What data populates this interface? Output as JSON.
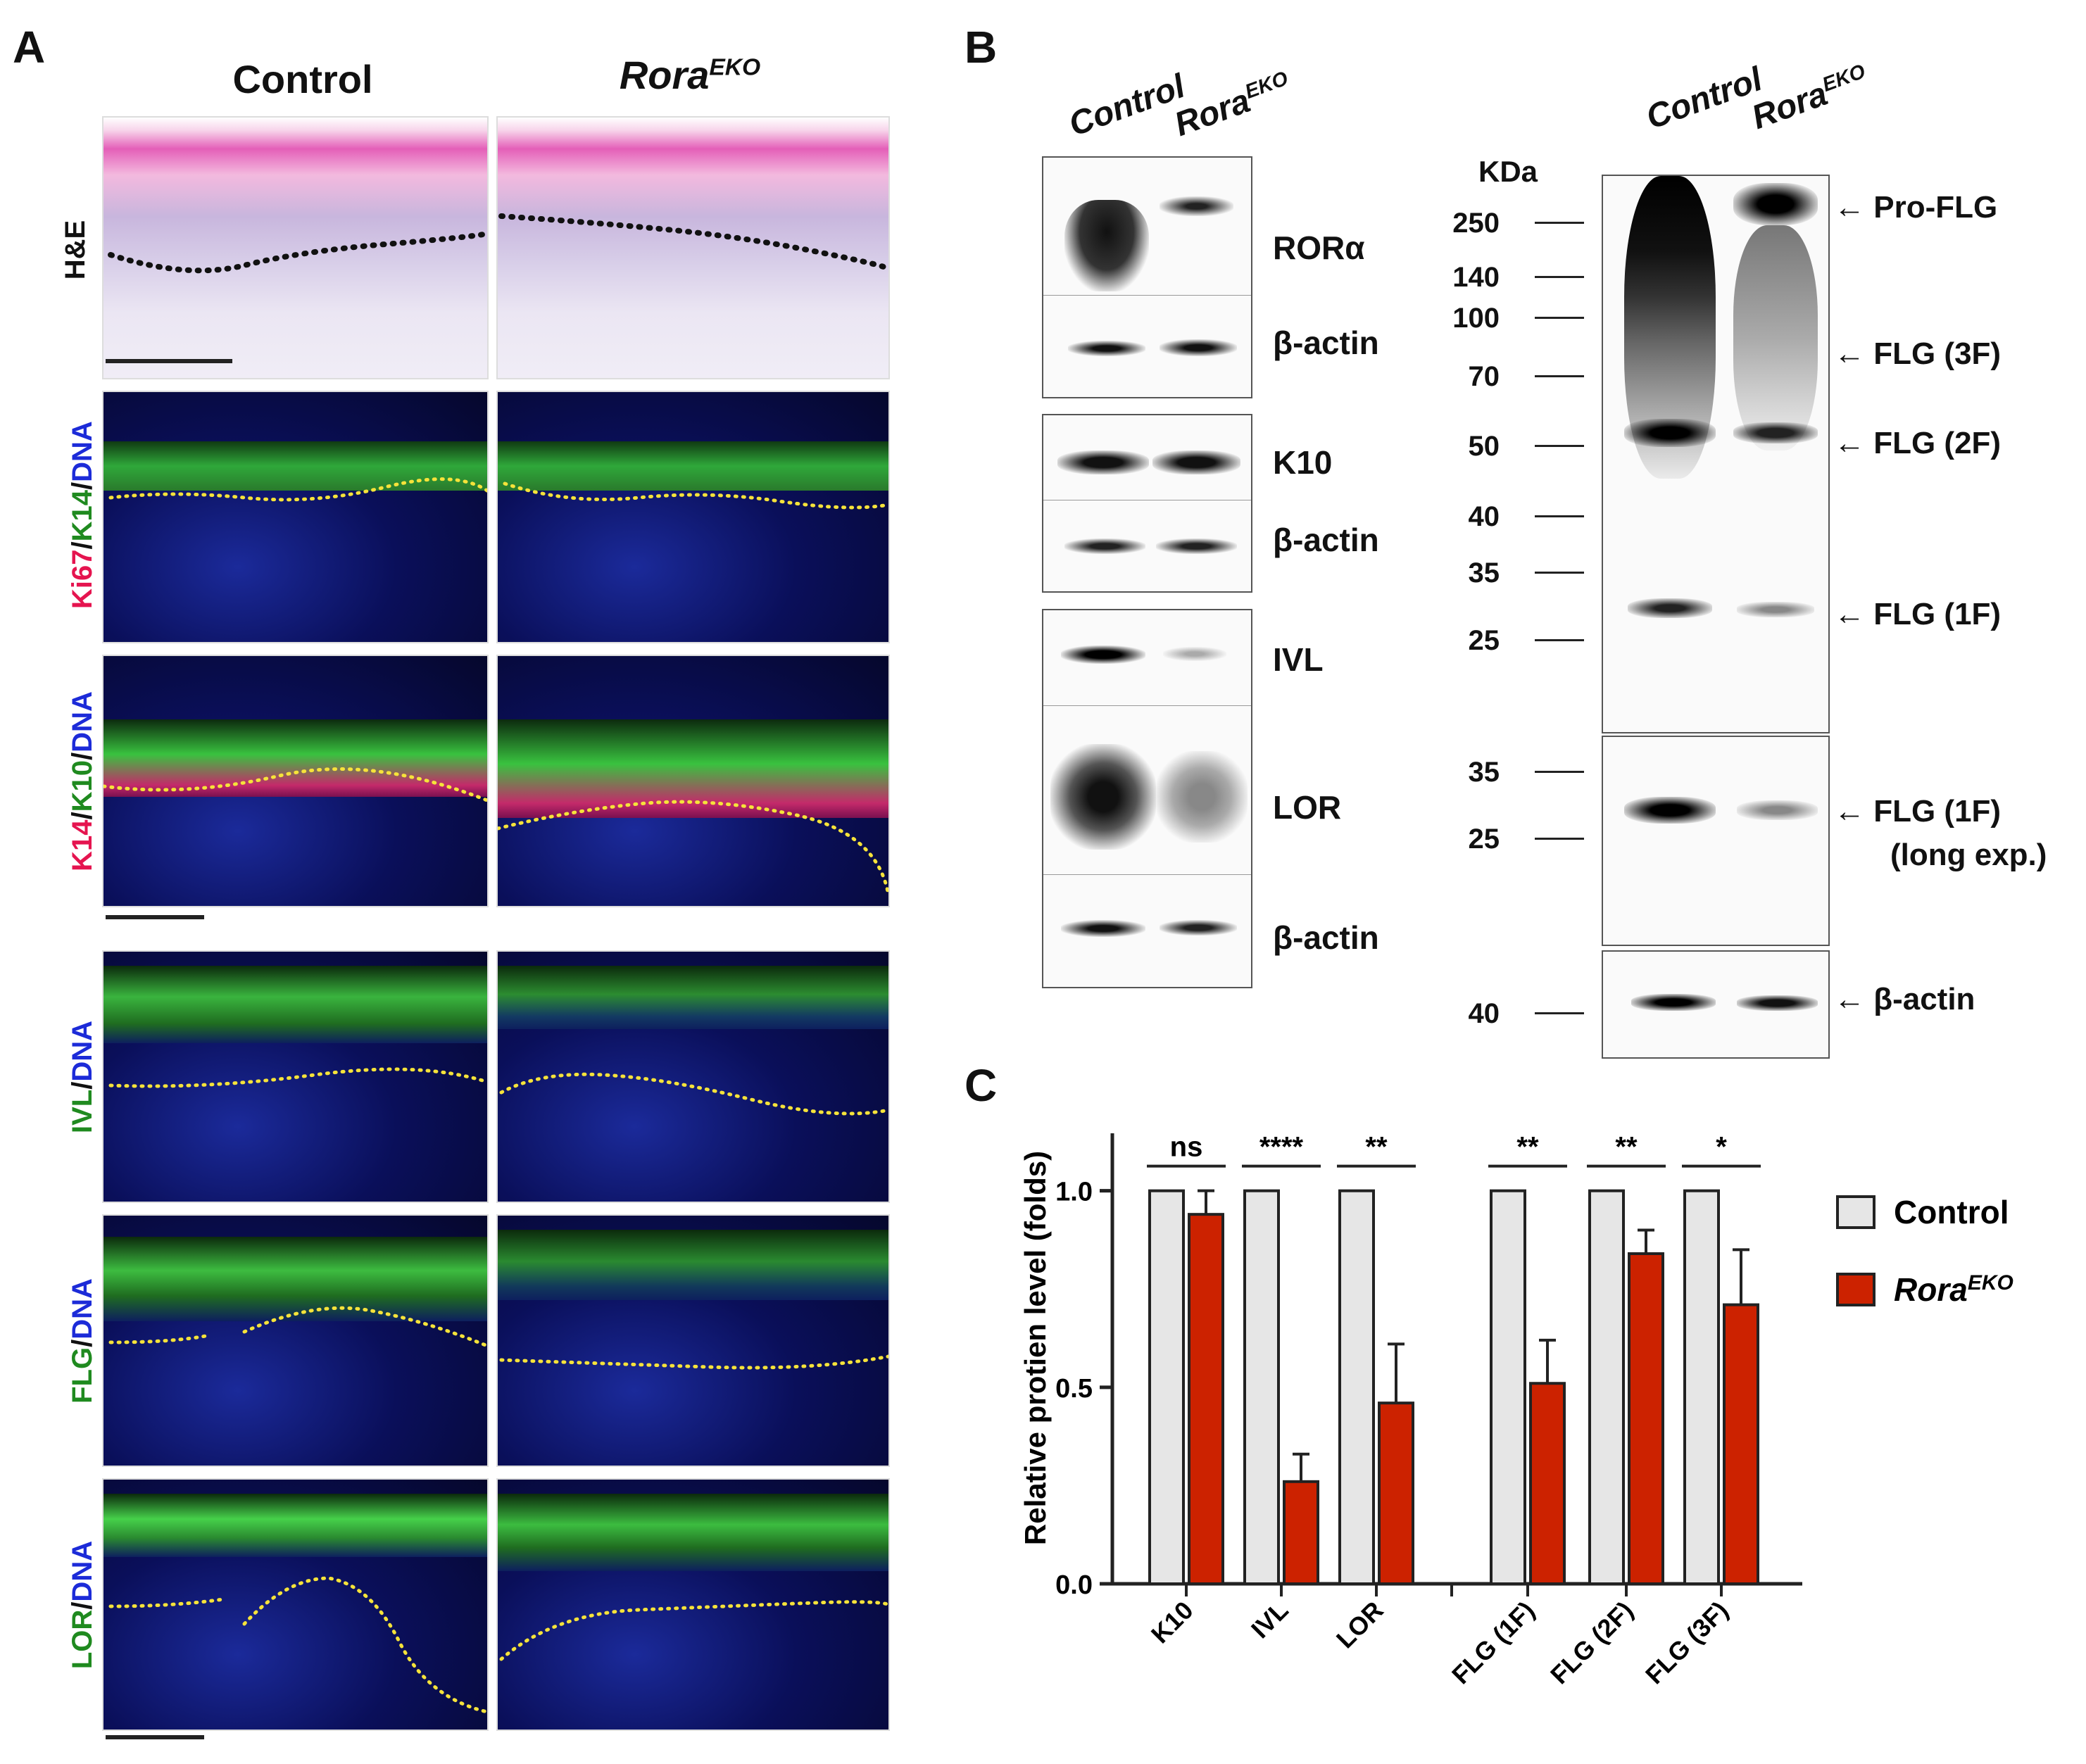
{
  "panels": {
    "a": "A",
    "b": "B",
    "c": "C"
  },
  "panel_a": {
    "col_control": "Control",
    "col_rora_main": "Rora",
    "col_rora_sup": "EKO",
    "rows": [
      {
        "label": "H&E"
      },
      {
        "label_parts": [
          "Ki67",
          "/",
          "K14",
          "/",
          "DNA"
        ]
      },
      {
        "label_parts": [
          "K14",
          "/",
          "K10",
          "/",
          "DNA"
        ]
      },
      {
        "label_parts": [
          "IVL",
          "/",
          "DNA"
        ]
      },
      {
        "label_parts": [
          "FLG",
          "/",
          "DNA"
        ]
      },
      {
        "label_parts": [
          "LOR",
          "/",
          "DNA"
        ]
      }
    ]
  },
  "panel_b_left": {
    "lane_control": "Control",
    "lane_rora_main": "Rora",
    "lane_rora_sup": "EKO",
    "labels": [
      "RORα",
      "β-actin",
      "K10",
      "β-actin",
      "IVL",
      "LOR",
      "β-actin"
    ]
  },
  "panel_b_right": {
    "kda_header": "KDa",
    "lane_control": "Control",
    "lane_rora_main": "Rora",
    "lane_rora_sup": "EKO",
    "markers_top": [
      "250",
      "140",
      "100",
      "70",
      "50",
      "40",
      "35",
      "25"
    ],
    "markers_mid": [
      "35",
      "25"
    ],
    "markers_bottom": [
      "40"
    ],
    "arrows": [
      "← Pro-FLG",
      "← FLG (3F)",
      "← FLG (2F)",
      "← FLG (1F)",
      "← FLG (1F)",
      "(long exp.)",
      "← β-actin"
    ]
  },
  "chart_data": {
    "type": "bar",
    "ylabel": "Relative protien level (folds)",
    "ylim": [
      0,
      1.2
    ],
    "yticks": [
      "0.0",
      "0.5",
      "1.0"
    ],
    "categories": [
      "K10",
      "IVL",
      "LOR",
      "FLG (1F)",
      "FLG (2F)",
      "FLG (3F)"
    ],
    "series": [
      {
        "name": "Control",
        "color": "#e6e6e6",
        "values": [
          1.0,
          1.0,
          1.0,
          1.0,
          1.0,
          1.0
        ]
      },
      {
        "name": "Rora EKO",
        "color": "#cc2200",
        "values": [
          0.94,
          0.26,
          0.46,
          0.51,
          0.84,
          0.71
        ],
        "errors": [
          0.06,
          0.07,
          0.15,
          0.11,
          0.06,
          0.14
        ]
      }
    ],
    "significance": [
      "ns",
      "****",
      "**",
      "**",
      "**",
      "*"
    ],
    "legend": {
      "control": "Control",
      "rora_main": "Rora",
      "rora_sup": "EKO"
    }
  }
}
